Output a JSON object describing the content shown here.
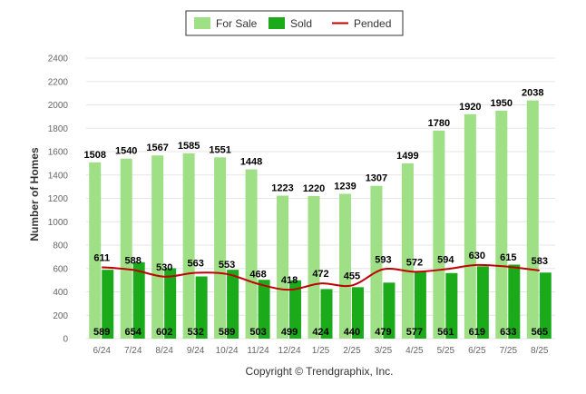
{
  "chart_data": {
    "type": "bar",
    "categories": [
      "6/24",
      "7/24",
      "8/24",
      "9/24",
      "10/24",
      "11/24",
      "12/24",
      "1/25",
      "2/25",
      "3/25",
      "4/25",
      "5/25",
      "6/25",
      "7/25",
      "8/25"
    ],
    "series": [
      {
        "name": "For Sale",
        "kind": "bar",
        "color": "#9fdf85",
        "values": [
          1508,
          1540,
          1567,
          1585,
          1551,
          1448,
          1223,
          1220,
          1239,
          1307,
          1499,
          1780,
          1920,
          1950,
          2038
        ]
      },
      {
        "name": "Sold",
        "kind": "bar",
        "color": "#1aaa1a",
        "values": [
          589,
          654,
          602,
          532,
          589,
          503,
          499,
          424,
          440,
          479,
          577,
          561,
          619,
          633,
          565
        ]
      },
      {
        "name": "Pended",
        "kind": "line",
        "color": "#c00000",
        "values": [
          611,
          588,
          530,
          563,
          553,
          468,
          418,
          472,
          455,
          593,
          572,
          594,
          630,
          615,
          583
        ]
      }
    ],
    "ylabel": "Number of Homes",
    "ylim": [
      0,
      2400
    ],
    "yticks": [
      0,
      200,
      400,
      600,
      800,
      1000,
      1200,
      1400,
      1600,
      1800,
      2000,
      2200,
      2400
    ],
    "grid": true,
    "legend": "top-center"
  },
  "footer": {
    "copyright": "Copyright © Trendgraphix, Inc."
  }
}
